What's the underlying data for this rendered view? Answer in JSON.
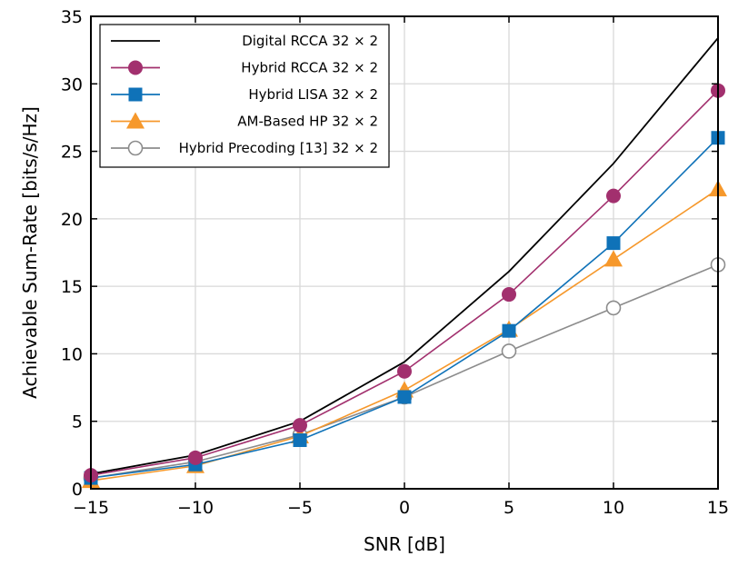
{
  "chart_data": {
    "type": "line",
    "xlabel": "SNR [dB]",
    "ylabel": "Achievable Sum-Rate [bits/s/Hz]",
    "xlim": [
      -15,
      15
    ],
    "ylim": [
      0,
      35
    ],
    "xticks": [
      -15,
      -10,
      -5,
      0,
      5,
      10,
      15
    ],
    "xtick_labels": [
      "−15",
      "−10",
      "−5",
      "0",
      "5",
      "10",
      "15"
    ],
    "yticks": [
      0,
      5,
      10,
      15,
      20,
      25,
      30,
      35
    ],
    "ytick_labels": [
      "0",
      "5",
      "10",
      "15",
      "20",
      "25",
      "30",
      "35"
    ],
    "grid": true,
    "legend_position": "top-left",
    "x": [
      -15,
      -10,
      -5,
      0,
      5,
      10,
      15
    ],
    "series": [
      {
        "name": "Digital RCCA 32 × 2",
        "color": "#000000",
        "marker": "none",
        "values": [
          1.1,
          2.5,
          5.0,
          9.4,
          16.1,
          24.1,
          33.4
        ]
      },
      {
        "name": "Hybrid RCCA 32 × 2",
        "color": "#A2306E",
        "marker": "circle",
        "values": [
          1.0,
          2.3,
          4.7,
          8.7,
          14.4,
          21.7,
          29.5
        ]
      },
      {
        "name": "Hybrid LISA 32 × 2",
        "color": "#0F72B8",
        "marker": "square",
        "values": [
          0.8,
          1.8,
          3.6,
          6.8,
          11.7,
          18.2,
          26.0
        ]
      },
      {
        "name": "AM-Based HP 32 × 2",
        "color": "#F6982B",
        "marker": "triangle",
        "values": [
          0.6,
          1.7,
          3.9,
          7.3,
          11.8,
          17.0,
          22.2
        ]
      },
      {
        "name": "Hybrid Precoding [13] 32 × 2",
        "color": "#8C8C8C",
        "marker": "open-circle",
        "values": [
          0.8,
          2.0,
          4.0,
          6.8,
          10.2,
          13.4,
          16.6
        ]
      }
    ]
  }
}
